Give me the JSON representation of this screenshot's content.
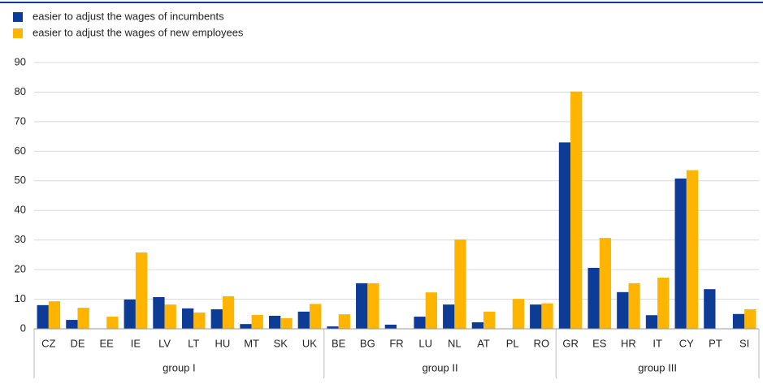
{
  "chart_data": {
    "type": "bar",
    "groups": [
      {
        "name": "group I",
        "categories": [
          "CZ",
          "DE",
          "EE",
          "IE",
          "LV",
          "LT",
          "HU",
          "MT",
          "SK",
          "UK"
        ]
      },
      {
        "name": "group II",
        "categories": [
          "BE",
          "BG",
          "FR",
          "LU",
          "NL",
          "AT",
          "PL",
          "RO"
        ]
      },
      {
        "name": "group III",
        "categories": [
          "GR",
          "ES",
          "HR",
          "IT",
          "CY",
          "PT",
          "SI"
        ]
      }
    ],
    "series": [
      {
        "name": "easier to adjust the wages of incumbents",
        "color": "#0c3c96",
        "values": [
          8.0,
          3.0,
          0,
          9.9,
          10.7,
          6.9,
          6.6,
          1.6,
          4.4,
          5.8,
          0.8,
          15.4,
          1.4,
          4.1,
          8.2,
          2.2,
          0,
          8.2,
          63.0,
          20.6,
          12.4,
          4.6,
          50.8,
          13.4,
          5.0
        ]
      },
      {
        "name": "easier to adjust the wages of new employees",
        "color": "#ffb400",
        "values": [
          9.3,
          7.1,
          4.1,
          25.8,
          8.2,
          5.5,
          11.0,
          4.7,
          3.6,
          8.4,
          4.9,
          15.4,
          0,
          12.3,
          30.2,
          5.8,
          10.1,
          8.6,
          80.2,
          30.7,
          15.4,
          17.3,
          53.6,
          0,
          6.6
        ]
      }
    ],
    "ylim": [
      0,
      90
    ],
    "yticks": [
      0,
      10,
      20,
      30,
      40,
      50,
      60,
      70,
      80,
      90
    ],
    "grid": true,
    "legend": "top-left"
  }
}
